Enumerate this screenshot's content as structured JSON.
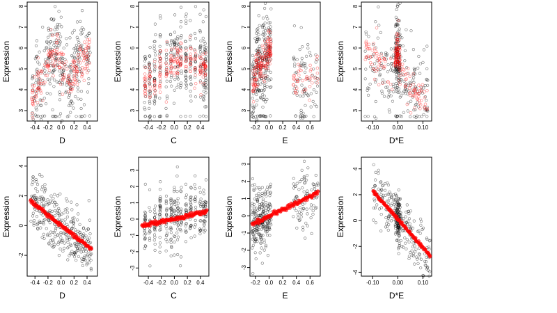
{
  "figure": {
    "panels": [
      {
        "row": 0,
        "col": 0,
        "xlabel": "D",
        "ylabel": "Expression",
        "xlim": [
          -0.52,
          0.56
        ],
        "ylim": [
          2.5,
          8.2
        ],
        "xticks": [
          -0.4,
          -0.2,
          0.0,
          0.2,
          0.4
        ],
        "xticklabels": [
          "-0.4",
          "-0.2",
          "0.0",
          "0.2",
          "0.4"
        ],
        "yticks": [
          3,
          4,
          5,
          6,
          7,
          8
        ],
        "yticklabels": [
          "3",
          "4",
          "5",
          "6",
          "7",
          "8"
        ]
      },
      {
        "row": 0,
        "col": 1,
        "xlabel": "C",
        "ylabel": "Expression",
        "xlim": [
          -0.55,
          0.53
        ],
        "ylim": [
          2.5,
          8.2
        ],
        "xticks": [
          -0.4,
          -0.2,
          0.0,
          0.2,
          0.4
        ],
        "xticklabels": [
          "-0.4",
          "-0.2",
          "0.0",
          "0.2",
          "0.4"
        ],
        "yticks": [
          3,
          4,
          5,
          6,
          7,
          8
        ],
        "yticklabels": [
          "3",
          "4",
          "5",
          "6",
          "7",
          "8"
        ]
      },
      {
        "row": 0,
        "col": 2,
        "xlabel": "E",
        "ylabel": "Expression",
        "xlim": [
          -0.28,
          0.75
        ],
        "ylim": [
          2.5,
          8.2
        ],
        "xticks": [
          -0.2,
          0.0,
          0.2,
          0.4,
          0.6
        ],
        "xticklabels": [
          "-0.2",
          "0.0",
          "0.2",
          "0.4",
          "0.6"
        ],
        "yticks": [
          3,
          4,
          5,
          6,
          7,
          8
        ],
        "yticklabels": [
          "3",
          "4",
          "5",
          "6",
          "7",
          "8"
        ]
      },
      {
        "row": 0,
        "col": 3,
        "xlabel": "D*E",
        "ylabel": "Expression",
        "xlim": [
          -0.145,
          0.135
        ],
        "ylim": [
          2.5,
          8.2
        ],
        "xticks": [
          -0.1,
          0.0,
          0.1
        ],
        "xticklabels": [
          "-0.10",
          "0.00",
          "0.10"
        ],
        "yticks": [
          3,
          4,
          5,
          6,
          7,
          8
        ],
        "yticklabels": [
          "3",
          "4",
          "5",
          "6",
          "7",
          "8"
        ]
      },
      {
        "row": 1,
        "col": 0,
        "xlabel": "D",
        "ylabel": "Expression",
        "xlim": [
          -0.52,
          0.56
        ],
        "ylim": [
          -3.4,
          4.6
        ],
        "xticks": [
          -0.4,
          -0.2,
          0.0,
          0.2,
          0.4
        ],
        "xticklabels": [
          "-0.4",
          "-0.2",
          "0.0",
          "0.2",
          "0.4"
        ],
        "yticks": [
          -2,
          0,
          2,
          4
        ],
        "yticklabels": [
          "-2",
          "0",
          "2",
          "4"
        ]
      },
      {
        "row": 1,
        "col": 1,
        "xlabel": "C",
        "ylabel": "Expression",
        "xlim": [
          -0.55,
          0.53
        ],
        "ylim": [
          -3.5,
          3.8
        ],
        "xticks": [
          -0.4,
          -0.2,
          0.0,
          0.2,
          0.4
        ],
        "xticklabels": [
          "-0.4",
          "-0.2",
          "0.0",
          "0.2",
          "0.4"
        ],
        "yticks": [
          -3,
          -2,
          -1,
          0,
          1,
          2,
          3
        ],
        "yticklabels": [
          "-3",
          "-2",
          "-1",
          "0",
          "1",
          "2",
          "3"
        ]
      },
      {
        "row": 1,
        "col": 2,
        "xlabel": "E",
        "ylabel": "Expression",
        "xlim": [
          -0.28,
          0.75
        ],
        "ylim": [
          -3.5,
          3.4
        ],
        "xticks": [
          -0.2,
          0.0,
          0.2,
          0.4,
          0.6
        ],
        "xticklabels": [
          "-0.2",
          "0.0",
          "0.2",
          "0.4",
          "0.6"
        ],
        "yticks": [
          -3,
          -2,
          -1,
          0,
          1,
          2,
          3
        ],
        "yticklabels": [
          "-3",
          "-2",
          "-1",
          "0",
          "1",
          "2",
          "3"
        ]
      },
      {
        "row": 1,
        "col": 3,
        "xlabel": "D*E",
        "ylabel": "Expression",
        "xlim": [
          -0.145,
          0.135
        ],
        "ylim": [
          -4.3,
          4.9
        ],
        "xticks": [
          -0.1,
          0.0,
          0.1
        ],
        "xticklabels": [
          "-0.10",
          "0.00",
          "0.10"
        ],
        "yticks": [
          -4,
          -2,
          0,
          2,
          4
        ],
        "yticklabels": [
          "-4",
          "-2",
          "0",
          "2",
          "4"
        ]
      }
    ]
  },
  "chart_data": [
    {
      "type": "scatter",
      "xlabel": "D",
      "ylabel": "Expression",
      "xlim": [
        -0.52,
        0.56
      ],
      "ylim": [
        2.5,
        8.2
      ],
      "series": [
        {
          "color": "#000000",
          "marker": "open-circle"
        },
        {
          "color": "#ff0000",
          "marker": "open-circle"
        }
      ],
      "fitted_trend_red": [
        [
          -0.45,
          3.5
        ],
        [
          -0.35,
          4.2
        ],
        [
          -0.25,
          4.6
        ],
        [
          -0.15,
          5.8
        ],
        [
          -0.05,
          5.8
        ],
        [
          0.05,
          4.9
        ],
        [
          0.15,
          4.4
        ],
        [
          0.25,
          5.2
        ],
        [
          0.35,
          5.4
        ],
        [
          0.45,
          6.0
        ]
      ]
    },
    {
      "type": "scatter",
      "xlabel": "C",
      "ylabel": "Expression",
      "xlim": [
        -0.55,
        0.53
      ],
      "ylim": [
        2.5,
        8.2
      ],
      "series": [
        {
          "color": "#000000",
          "marker": "open-circle"
        },
        {
          "color": "#ff0000",
          "marker": "open-circle"
        }
      ],
      "fitted_trend_red": [
        [
          -0.45,
          4.3
        ],
        [
          -0.25,
          4.8
        ],
        [
          0.0,
          5.4
        ],
        [
          0.25,
          5.5
        ],
        [
          0.45,
          5.0
        ]
      ]
    },
    {
      "type": "scatter",
      "xlabel": "E",
      "ylabel": "Expression",
      "xlim": [
        -0.28,
        0.75
      ],
      "ylim": [
        2.5,
        8.2
      ],
      "series": [
        {
          "color": "#000000",
          "marker": "open-circle"
        },
        {
          "color": "#ff0000",
          "marker": "open-circle"
        }
      ],
      "fitted_trend_red": [
        [
          -0.25,
          4.0
        ],
        [
          -0.15,
          5.2
        ],
        [
          -0.05,
          5.4
        ],
        [
          0.0,
          5.9
        ],
        [
          0.38,
          4.4
        ],
        [
          0.55,
          4.5
        ],
        [
          0.7,
          4.8
        ]
      ]
    },
    {
      "type": "scatter",
      "xlabel": "D*E",
      "ylabel": "Expression",
      "xlim": [
        -0.145,
        0.135
      ],
      "ylim": [
        2.5,
        8.2
      ],
      "series": [
        {
          "color": "#000000",
          "marker": "open-circle"
        },
        {
          "color": "#ff0000",
          "marker": "open-circle"
        }
      ],
      "fitted_trend_red": [
        [
          -0.13,
          5.9
        ],
        [
          -0.08,
          5.3
        ],
        [
          -0.03,
          4.7
        ],
        [
          0.0,
          5.8
        ],
        [
          0.03,
          4.4
        ],
        [
          0.08,
          4.0
        ],
        [
          0.12,
          3.6
        ]
      ]
    },
    {
      "type": "scatter",
      "xlabel": "D",
      "ylabel": "Expression",
      "xlim": [
        -0.52,
        0.56
      ],
      "ylim": [
        -3.4,
        4.6
      ],
      "series": [
        {
          "color": "#000000",
          "marker": "open-circle"
        },
        {
          "color": "#ff0000",
          "marker": "filled-circle"
        }
      ],
      "fitted_trend_red": [
        [
          -0.47,
          1.65
        ],
        [
          0.47,
          -1.6
        ]
      ]
    },
    {
      "type": "scatter",
      "xlabel": "C",
      "ylabel": "Expression",
      "xlim": [
        -0.55,
        0.53
      ],
      "ylim": [
        -3.5,
        3.8
      ],
      "series": [
        {
          "color": "#000000",
          "marker": "open-circle"
        },
        {
          "color": "#ff0000",
          "marker": "filled-circle"
        }
      ],
      "fitted_trend_red": [
        [
          -0.5,
          -0.4
        ],
        [
          0.5,
          0.45
        ]
      ]
    },
    {
      "type": "scatter",
      "xlabel": "E",
      "ylabel": "Expression",
      "xlim": [
        -0.28,
        0.75
      ],
      "ylim": [
        -3.5,
        3.4
      ],
      "series": [
        {
          "color": "#000000",
          "marker": "open-circle"
        },
        {
          "color": "#ff0000",
          "marker": "filled-circle"
        }
      ],
      "fitted_trend_red": [
        [
          -0.25,
          -0.5
        ],
        [
          0.72,
          1.35
        ]
      ]
    },
    {
      "type": "scatter",
      "xlabel": "D*E",
      "ylabel": "Expression",
      "xlim": [
        -0.145,
        0.135
      ],
      "ylim": [
        -4.3,
        4.9
      ],
      "series": [
        {
          "color": "#000000",
          "marker": "open-circle"
        },
        {
          "color": "#ff0000",
          "marker": "filled-circle"
        }
      ],
      "fitted_trend_red": [
        [
          -0.1,
          2.3
        ],
        [
          0.13,
          -2.75
        ]
      ]
    }
  ]
}
